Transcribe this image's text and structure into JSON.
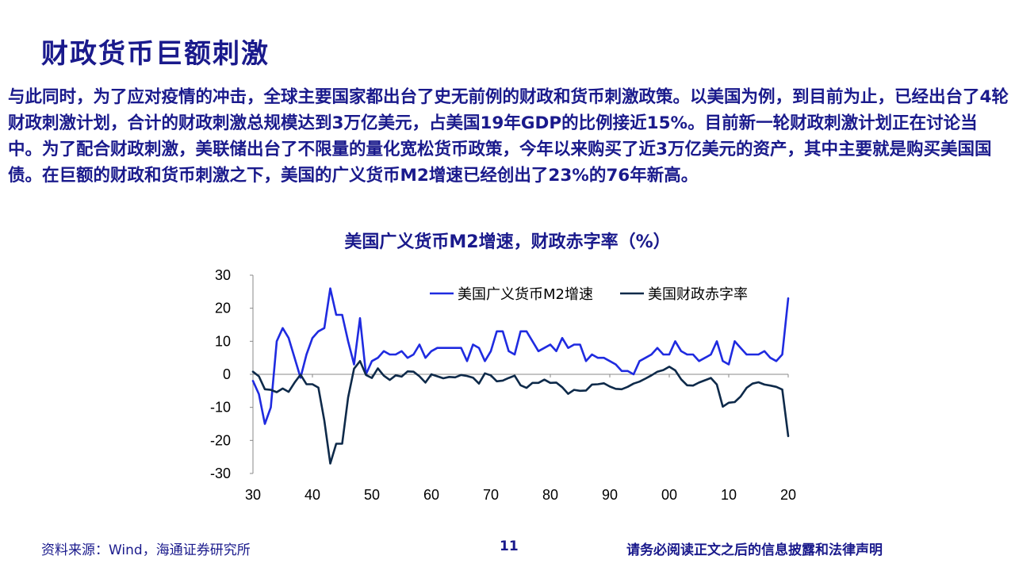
{
  "slide": {
    "title": "财政货币巨额刺激",
    "body": "与此同时，为了应对疫情的冲击，全球主要国家都出台了史无前例的财政和货币刺激政策。以美国为例，到目前为止，已经出台了4轮财政刺激计划，合计的财政刺激总规模达到3万亿美元，占美国19年GDP的比例接近15%。目前新一轮财政刺激计划正在讨论当中。为了配合财政刺激，美联储出台了不限量的量化宽松货币政策，今年以来购买了近3万亿美元的资产，其中主要就是购买美国国债。在巨额的财政和货币刺激之下，美国的广义货币M2增速已经创出了23%的76年新高。",
    "page_number": "11",
    "source": "资料来源：Wind，海通证券研究所",
    "disclaimer": "请务必阅读正文之后的信息披露和法律声明"
  },
  "colors": {
    "m2": "#1f2be0",
    "deficit": "#0e2a4a",
    "text": "#1a1a8c"
  },
  "chart_data": {
    "type": "line",
    "title": "美国广义货币M2增速，财政赤字率（%）",
    "xlim": [
      1930,
      2020
    ],
    "ylim": [
      -30,
      30
    ],
    "x_ticks": [
      1930,
      1940,
      1950,
      1960,
      1970,
      1980,
      1990,
      2000,
      2010,
      2020
    ],
    "x_tick_labels": [
      "30",
      "40",
      "50",
      "60",
      "70",
      "80",
      "90",
      "00",
      "10",
      "20"
    ],
    "y_ticks": [
      30,
      20,
      10,
      0,
      -10,
      -20,
      -30
    ],
    "y_tick_labels": [
      "30",
      "20",
      "10",
      "0",
      "-10",
      "-20",
      "-30"
    ],
    "legend_position": "top",
    "series": [
      {
        "name": "美国广义货币M2增速",
        "x": [
          1930,
          1931,
          1932,
          1933,
          1934,
          1935,
          1936,
          1937,
          1938,
          1939,
          1940,
          1941,
          1942,
          1943,
          1944,
          1945,
          1946,
          1947,
          1948,
          1949,
          1950,
          1951,
          1952,
          1953,
          1954,
          1955,
          1956,
          1957,
          1958,
          1959,
          1960,
          1961,
          1962,
          1963,
          1964,
          1965,
          1966,
          1967,
          1968,
          1969,
          1970,
          1971,
          1972,
          1973,
          1974,
          1975,
          1976,
          1977,
          1978,
          1979,
          1980,
          1981,
          1982,
          1983,
          1984,
          1985,
          1986,
          1987,
          1988,
          1989,
          1990,
          1991,
          1992,
          1993,
          1994,
          1995,
          1996,
          1997,
          1998,
          1999,
          2000,
          2001,
          2002,
          2003,
          2004,
          2005,
          2006,
          2007,
          2008,
          2009,
          2010,
          2011,
          2012,
          2013,
          2014,
          2015,
          2016,
          2017,
          2018,
          2019,
          2020
        ],
        "values": [
          -2,
          -6,
          -15,
          -10,
          10,
          14,
          11,
          5,
          -1,
          6,
          11,
          13,
          14,
          26,
          18,
          18,
          10,
          3,
          17,
          0,
          4,
          5,
          7,
          6,
          6,
          7,
          5,
          6,
          9,
          5,
          7,
          8,
          8,
          8,
          8,
          8,
          4,
          9,
          8,
          4,
          7,
          13,
          13,
          7,
          6,
          13,
          13,
          10,
          7,
          8,
          9,
          7,
          11,
          8,
          9,
          9,
          4,
          6,
          5,
          5,
          4,
          3,
          1,
          1,
          0,
          4,
          5,
          6,
          8,
          6,
          6,
          10,
          7,
          6,
          6,
          4,
          5,
          6,
          10,
          4,
          3,
          10,
          8,
          6,
          6,
          6,
          7,
          5,
          4,
          6,
          23
        ]
      },
      {
        "name": "美国财政赤字率",
        "x": [
          1930,
          1931,
          1932,
          1933,
          1934,
          1935,
          1936,
          1937,
          1938,
          1939,
          1940,
          1941,
          1942,
          1943,
          1944,
          1945,
          1946,
          1947,
          1948,
          1949,
          1950,
          1951,
          1952,
          1953,
          1954,
          1955,
          1956,
          1957,
          1958,
          1959,
          1960,
          1961,
          1962,
          1963,
          1964,
          1965,
          1966,
          1967,
          1968,
          1969,
          1970,
          1971,
          1972,
          1973,
          1974,
          1975,
          1976,
          1977,
          1978,
          1979,
          1980,
          1981,
          1982,
          1983,
          1984,
          1985,
          1986,
          1987,
          1988,
          1989,
          1990,
          1991,
          1992,
          1993,
          1994,
          1995,
          1996,
          1997,
          1998,
          1999,
          2000,
          2001,
          2002,
          2003,
          2004,
          2005,
          2006,
          2007,
          2008,
          2009,
          2010,
          2011,
          2012,
          2013,
          2014,
          2015,
          2016,
          2017,
          2018,
          2019,
          2020
        ],
        "values": [
          0.8,
          -0.6,
          -4.5,
          -4.7,
          -5.4,
          -4.3,
          -5.3,
          -2.5,
          -0.1,
          -3,
          -3,
          -4,
          -14,
          -27,
          -21,
          -21,
          -7,
          1.7,
          4,
          -0.2,
          -1.1,
          1.8,
          -0.4,
          -1.7,
          -0.3,
          -0.7,
          0.9,
          0.8,
          -0.6,
          -2.5,
          0,
          -0.6,
          -1.2,
          -0.8,
          -0.9,
          -0.2,
          -0.5,
          -1,
          -2.8,
          0.3,
          -0.3,
          -2.1,
          -1.9,
          -1.1,
          -0.4,
          -3.3,
          -4.1,
          -2.6,
          -2.6,
          -1.6,
          -2.6,
          -2.5,
          -3.9,
          -5.9,
          -4.7,
          -5,
          -4.9,
          -3.1,
          -3,
          -2.7,
          -3.7,
          -4.4,
          -4.5,
          -3.8,
          -2.8,
          -2.2,
          -1.3,
          -0.3,
          0.8,
          1.3,
          2.3,
          1.2,
          -1.5,
          -3.3,
          -3.4,
          -2.5,
          -1.8,
          -1.1,
          -3.1,
          -9.8,
          -8.6,
          -8.4,
          -6.7,
          -4.1,
          -2.8,
          -2.4,
          -3.1,
          -3.4,
          -3.8,
          -4.6,
          -18.7
        ]
      }
    ]
  }
}
